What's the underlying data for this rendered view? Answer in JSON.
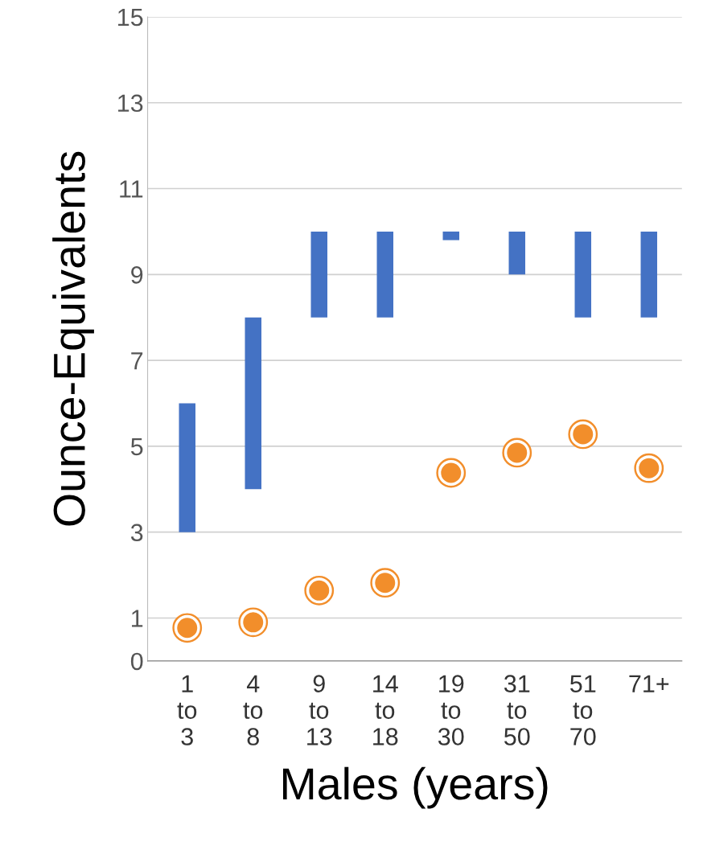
{
  "chart_data": {
    "type": "bar",
    "xlabel": "Males (years)",
    "ylabel": "Ounce-Equivalents",
    "categories": [
      "1\nto\n3",
      "4\nto\n8",
      "9\nto\n13",
      "14\nto\n18",
      "19\nto\n30",
      "31\nto\n50",
      "51\nto\n70",
      "71+"
    ],
    "series": [
      {
        "color": "#4472c4",
        "base": [
          3,
          4,
          8,
          8,
          9.8,
          9,
          8,
          8
        ],
        "values": [
          3,
          4,
          2,
          2,
          0.2,
          1,
          2,
          2
        ]
      },
      {
        "type": "scatter",
        "color": "#f28e2b",
        "values": [
          0.77,
          0.9,
          1.64,
          1.82,
          4.38,
          4.85,
          5.28,
          4.49
        ]
      }
    ],
    "ylim": [
      0,
      15
    ],
    "yticks": [
      0,
      1,
      3,
      5,
      7,
      9,
      11,
      13,
      15
    ],
    "grid": "y",
    "marker": "circle"
  }
}
